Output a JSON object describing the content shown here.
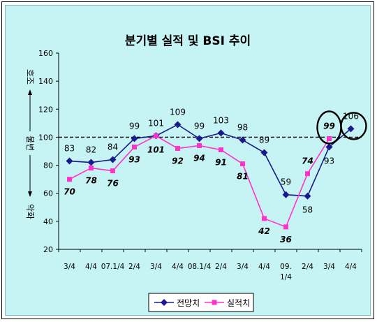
{
  "chart_data": {
    "type": "line",
    "title": "분기별 실적 및 BSI 추이",
    "categories": [
      "3/4",
      "4/4",
      "07.1/4",
      "2/4",
      "3/4",
      "4/4",
      "08.1/4",
      "2/4",
      "3/4",
      "4/4",
      "09.\n1/4",
      "2/4",
      "3/4",
      "4/4"
    ],
    "ylim": [
      20,
      160
    ],
    "yticks": [
      20,
      40,
      60,
      80,
      100,
      120,
      140,
      160
    ],
    "reference_line": 100,
    "y_axis_annotations": {
      "top": "호조",
      "middle": "불변",
      "bottom": "악화"
    },
    "series": [
      {
        "name": "전망치",
        "color": "#1a1a8c",
        "marker": "diamond",
        "values": [
          83,
          82,
          84,
          99,
          101,
          109,
          99,
          103,
          98,
          89,
          59,
          58,
          93,
          106
        ]
      },
      {
        "name": "실적치",
        "color": "#ff33cc",
        "marker": "square",
        "values": [
          70,
          78,
          76,
          93,
          101,
          92,
          94,
          91,
          81,
          42,
          36,
          74,
          99,
          null
        ]
      }
    ],
    "highlighted": [
      "99",
      "106"
    ],
    "legend_position": "bottom"
  }
}
